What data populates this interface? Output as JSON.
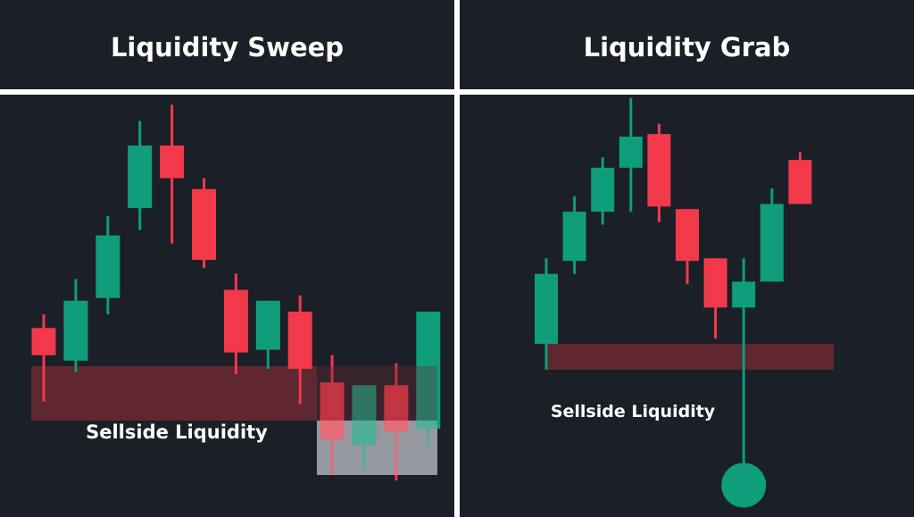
{
  "colors": {
    "background": "#1b1f27",
    "divider": "#ffffff",
    "bullish": "#0f9d7c",
    "bearish": "#f2394a",
    "liquidity_zone": "#6b2a33",
    "sweep_highlight": "#c9ccd2",
    "text": "#ffffff"
  },
  "chart_data": [
    {
      "type": "candlestick",
      "title": "Liquidity Sweep",
      "ylim": [
        0,
        100
      ],
      "candles": [
        {
          "open": 54,
          "close": 44,
          "high": 59,
          "low": 27
        },
        {
          "open": 42,
          "close": 64,
          "high": 72,
          "low": 38
        },
        {
          "open": 65,
          "close": 88,
          "high": 95,
          "low": 59
        },
        {
          "open": 98,
          "close": 121,
          "high": 130,
          "low": 90
        },
        {
          "open": 121,
          "close": 109,
          "high": 136,
          "low": 85
        },
        {
          "open": 105,
          "close": 79,
          "high": 109,
          "low": 76
        },
        {
          "open": 68,
          "close": 45,
          "high": 74,
          "low": 37
        },
        {
          "open": 46,
          "close": 64,
          "high": 64,
          "low": 39
        },
        {
          "open": 60,
          "close": 39,
          "high": 66,
          "low": 26
        },
        {
          "open": 34,
          "close": 13,
          "high": 44,
          "low": 0
        },
        {
          "open": 11,
          "close": 33,
          "high": 33,
          "low": 2
        },
        {
          "open": 33,
          "close": 16,
          "high": 41,
          "low": -2
        },
        {
          "open": 17,
          "close": 60,
          "high": 60,
          "low": 11
        }
      ],
      "zones": [
        {
          "label": "Sellside Liquidity",
          "low": 20,
          "high": 40
        },
        {
          "label": "",
          "low": 0,
          "high": 20
        }
      ]
    },
    {
      "type": "candlestick",
      "title": "Liquidity Grab",
      "ylim": [
        0,
        100
      ],
      "candles": [
        {
          "open": 20,
          "close": 47,
          "high": 53,
          "low": 10
        },
        {
          "open": 52,
          "close": 71,
          "high": 77,
          "low": 47
        },
        {
          "open": 71,
          "close": 88,
          "high": 92,
          "low": 66
        },
        {
          "open": 88,
          "close": 100,
          "high": 115,
          "low": 71
        },
        {
          "open": 101,
          "close": 73,
          "high": 105,
          "low": 67
        },
        {
          "open": 72,
          "close": 52,
          "high": 72,
          "low": 43
        },
        {
          "open": 53,
          "close": 34,
          "high": 53,
          "low": 22
        },
        {
          "open": 34,
          "close": 44,
          "high": 53,
          "low": -26
        },
        {
          "open": 44,
          "close": 74,
          "high": 80,
          "low": 44
        },
        {
          "open": 91,
          "close": 74,
          "high": 94,
          "low": 74
        }
      ],
      "zones": [
        {
          "label": "Sellside Liquidity",
          "low": 10,
          "high": 20
        }
      ],
      "marker": {
        "candle_index": 7,
        "at": "low"
      }
    }
  ]
}
